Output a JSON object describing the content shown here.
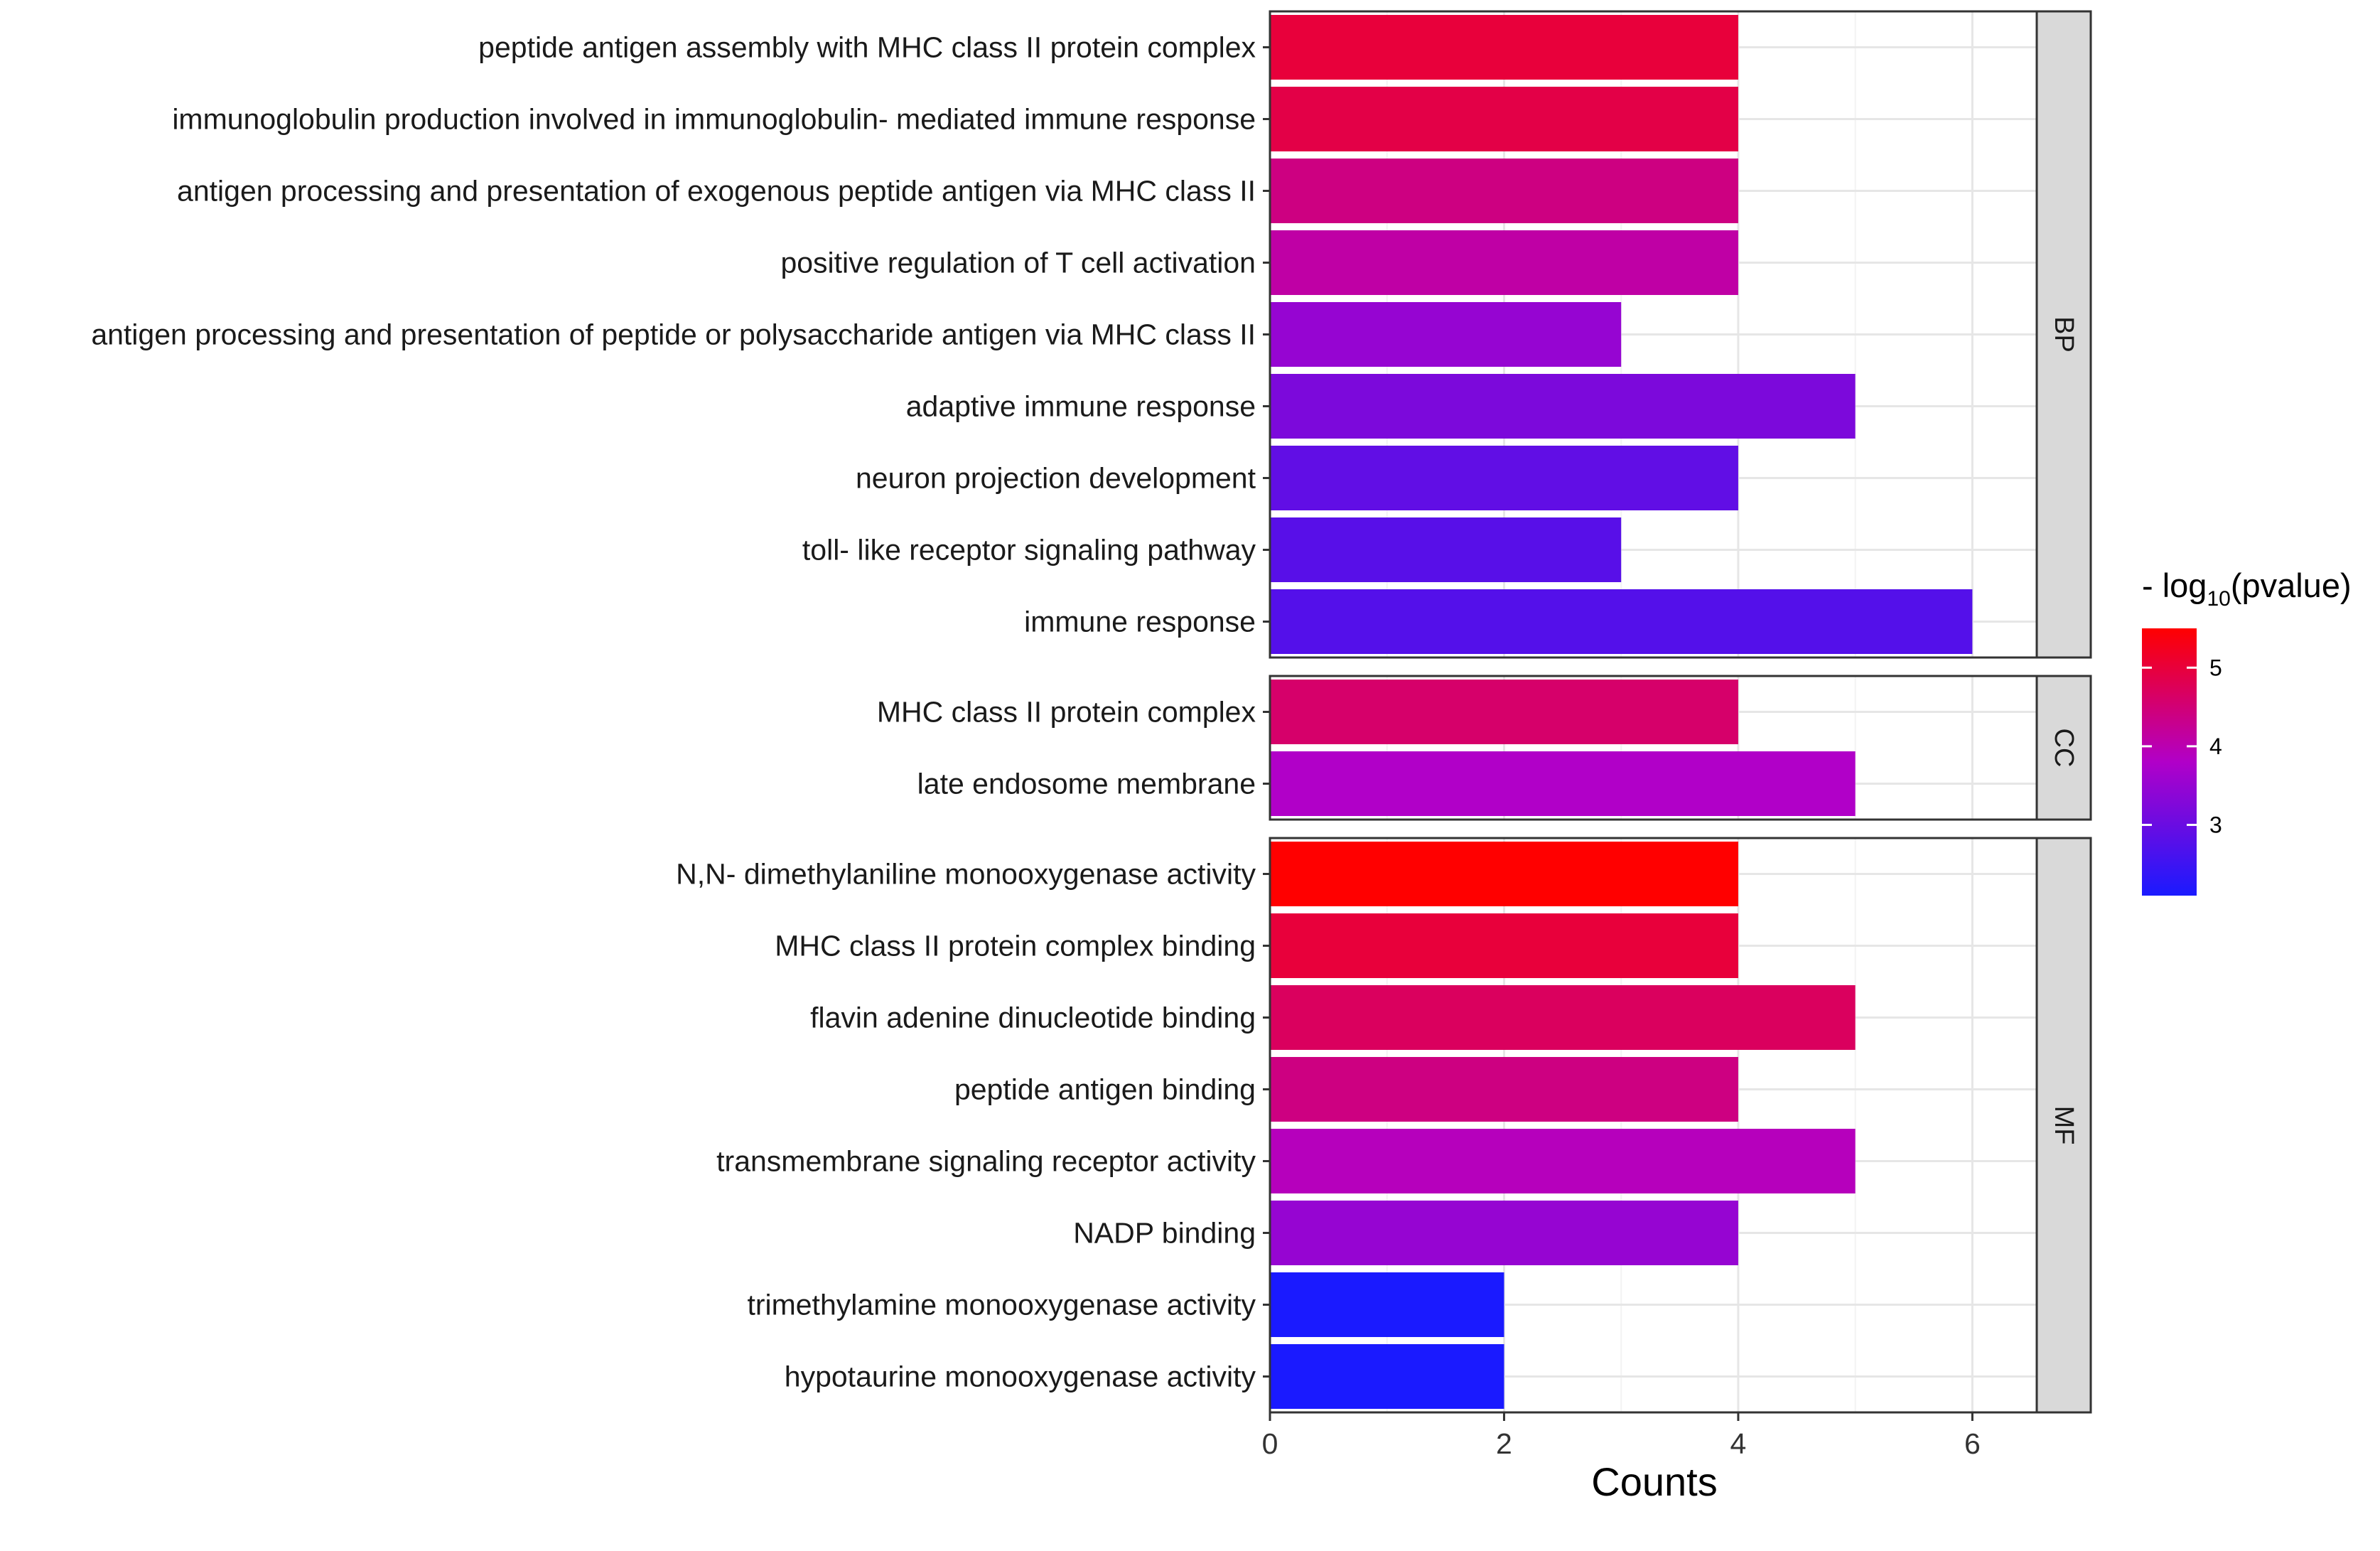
{
  "chart_data": {
    "type": "bar",
    "orientation": "horizontal",
    "xlabel": "Counts",
    "xlim": [
      0,
      6.55
    ],
    "xticks": [
      0,
      2,
      4,
      6
    ],
    "legend": {
      "title_prefix": "- log",
      "title_sub": "10",
      "title_suffix": "(pvalue)",
      "min": 2.1,
      "max": 5.5,
      "ticks": [
        3,
        4,
        5
      ],
      "color_low": "#1a1aff",
      "color_mid": "#b100c8",
      "color_high": "#ff0000",
      "placement": "right"
    },
    "panels": [
      {
        "facet": "BP",
        "items": [
          {
            "term": "peptide antigen assembly with MHC class II protein complex",
            "count": 4,
            "neglog10p": 5.0
          },
          {
            "term": "immunoglobulin production involved in immunoglobulin- mediated immune response",
            "count": 4,
            "neglog10p": 4.9
          },
          {
            "term": "antigen processing and presentation of exogenous peptide antigen via MHC class II",
            "count": 4,
            "neglog10p": 4.4
          },
          {
            "term": "positive regulation of T cell activation",
            "count": 4,
            "neglog10p": 4.1
          },
          {
            "term": "antigen processing and presentation of peptide or polysaccharide antigen via MHC class II",
            "count": 3,
            "neglog10p": 3.5
          },
          {
            "term": "adaptive immune response",
            "count": 5,
            "neglog10p": 3.2
          },
          {
            "term": "neuron projection development",
            "count": 4,
            "neglog10p": 2.9
          },
          {
            "term": "toll- like receptor signaling pathway",
            "count": 3,
            "neglog10p": 2.8
          },
          {
            "term": "immune response",
            "count": 6,
            "neglog10p": 2.75
          }
        ]
      },
      {
        "facet": "CC",
        "items": [
          {
            "term": "MHC class II protein complex",
            "count": 4,
            "neglog10p": 4.6
          },
          {
            "term": "late endosome membrane",
            "count": 5,
            "neglog10p": 3.8
          }
        ]
      },
      {
        "facet": "MF",
        "items": [
          {
            "term": "N,N- dimethylaniline monooxygenase activity",
            "count": 4,
            "neglog10p": 5.5
          },
          {
            "term": "MHC class II protein complex binding",
            "count": 4,
            "neglog10p": 5.0
          },
          {
            "term": "flavin adenine dinucleotide binding",
            "count": 5,
            "neglog10p": 4.7
          },
          {
            "term": "peptide antigen binding",
            "count": 4,
            "neglog10p": 4.4
          },
          {
            "term": "transmembrane signaling receptor activity",
            "count": 5,
            "neglog10p": 3.9
          },
          {
            "term": "NADP binding",
            "count": 4,
            "neglog10p": 3.5
          },
          {
            "term": "trimethylamine monooxygenase activity",
            "count": 2,
            "neglog10p": 2.1
          },
          {
            "term": "hypotaurine monooxygenase activity",
            "count": 2,
            "neglog10p": 2.1
          }
        ]
      }
    ]
  }
}
